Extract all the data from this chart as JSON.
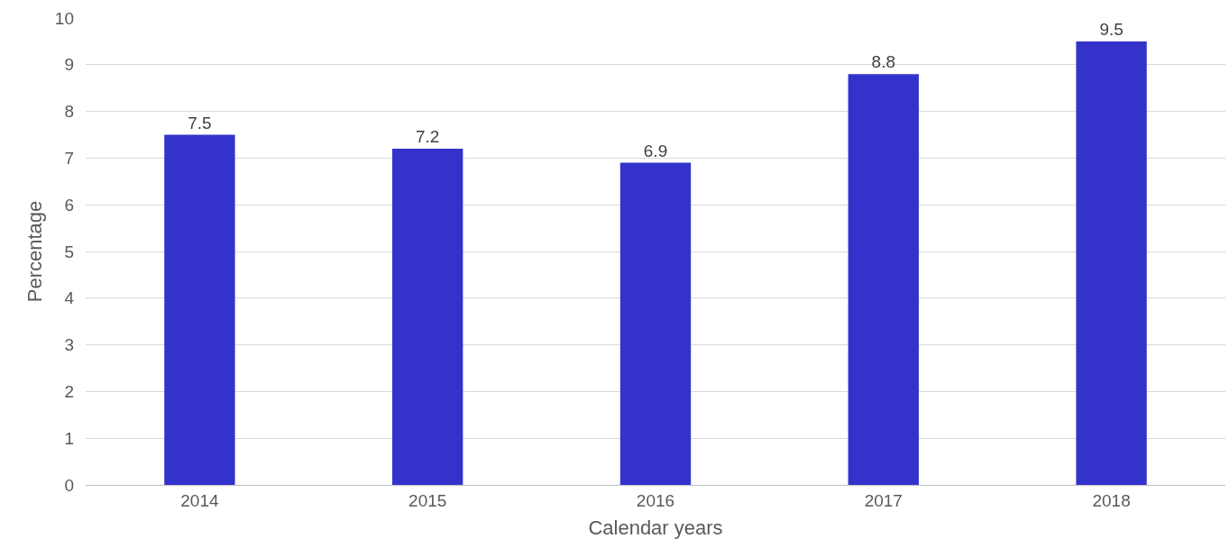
{
  "chart_data": {
    "type": "bar",
    "xlabel": "Calendar years",
    "ylabel": "Percentage",
    "categories": [
      "2014",
      "2015",
      "2016",
      "2017",
      "2018"
    ],
    "values": [
      7.5,
      7.2,
      6.9,
      8.8,
      9.5
    ],
    "color": "#3333cc",
    "data_labels": true,
    "grid": "y",
    "ylim": [
      0,
      10
    ],
    "yticks": [
      0,
      1,
      2,
      3,
      4,
      5,
      6,
      7,
      8,
      9,
      10
    ],
    "legend": false
  }
}
